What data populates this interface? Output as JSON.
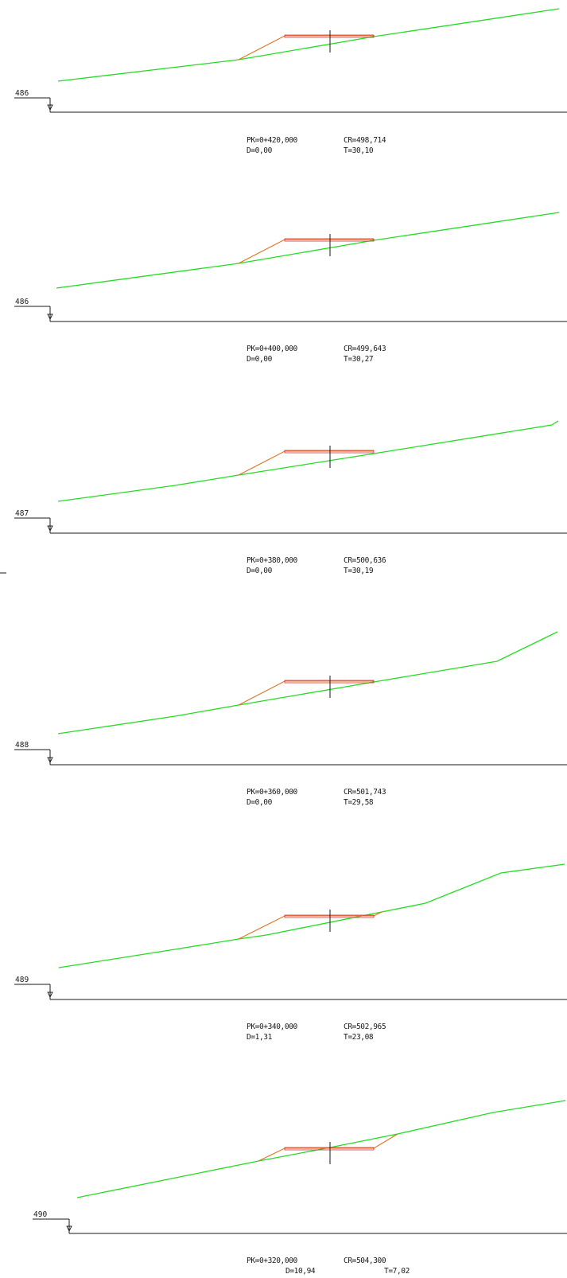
{
  "colors": {
    "terrain": "#22dd22",
    "road": "#e07020",
    "pavement": "#d83030",
    "ink": "#1a1a1a"
  },
  "sections": [
    {
      "datum": "486",
      "pk": "PK=0+420,000",
      "d": "D=0,00",
      "cr": "CR=498,714",
      "t": "T=30,10"
    },
    {
      "datum": "486",
      "pk": "PK=0+400,000",
      "d": "D=0,00",
      "cr": "CR=499,643",
      "t": "T=30,27"
    },
    {
      "datum": "487",
      "pk": "PK=0+380,000",
      "d": "D=0,00",
      "cr": "CR=500,636",
      "t": "T=30,19"
    },
    {
      "datum": "488",
      "pk": "PK=0+360,000",
      "d": "D=0,00",
      "cr": "CR=501,743",
      "t": "T=29,58"
    },
    {
      "datum": "489",
      "pk": "PK=0+340,000",
      "d": "D=1,31",
      "cr": "CR=502,965",
      "t": "T=23,08"
    },
    {
      "datum": "490",
      "pk": "PK=0+320,000",
      "d": "D=10,94",
      "cr": "CR=504,300",
      "t": "T=7,02"
    }
  ]
}
